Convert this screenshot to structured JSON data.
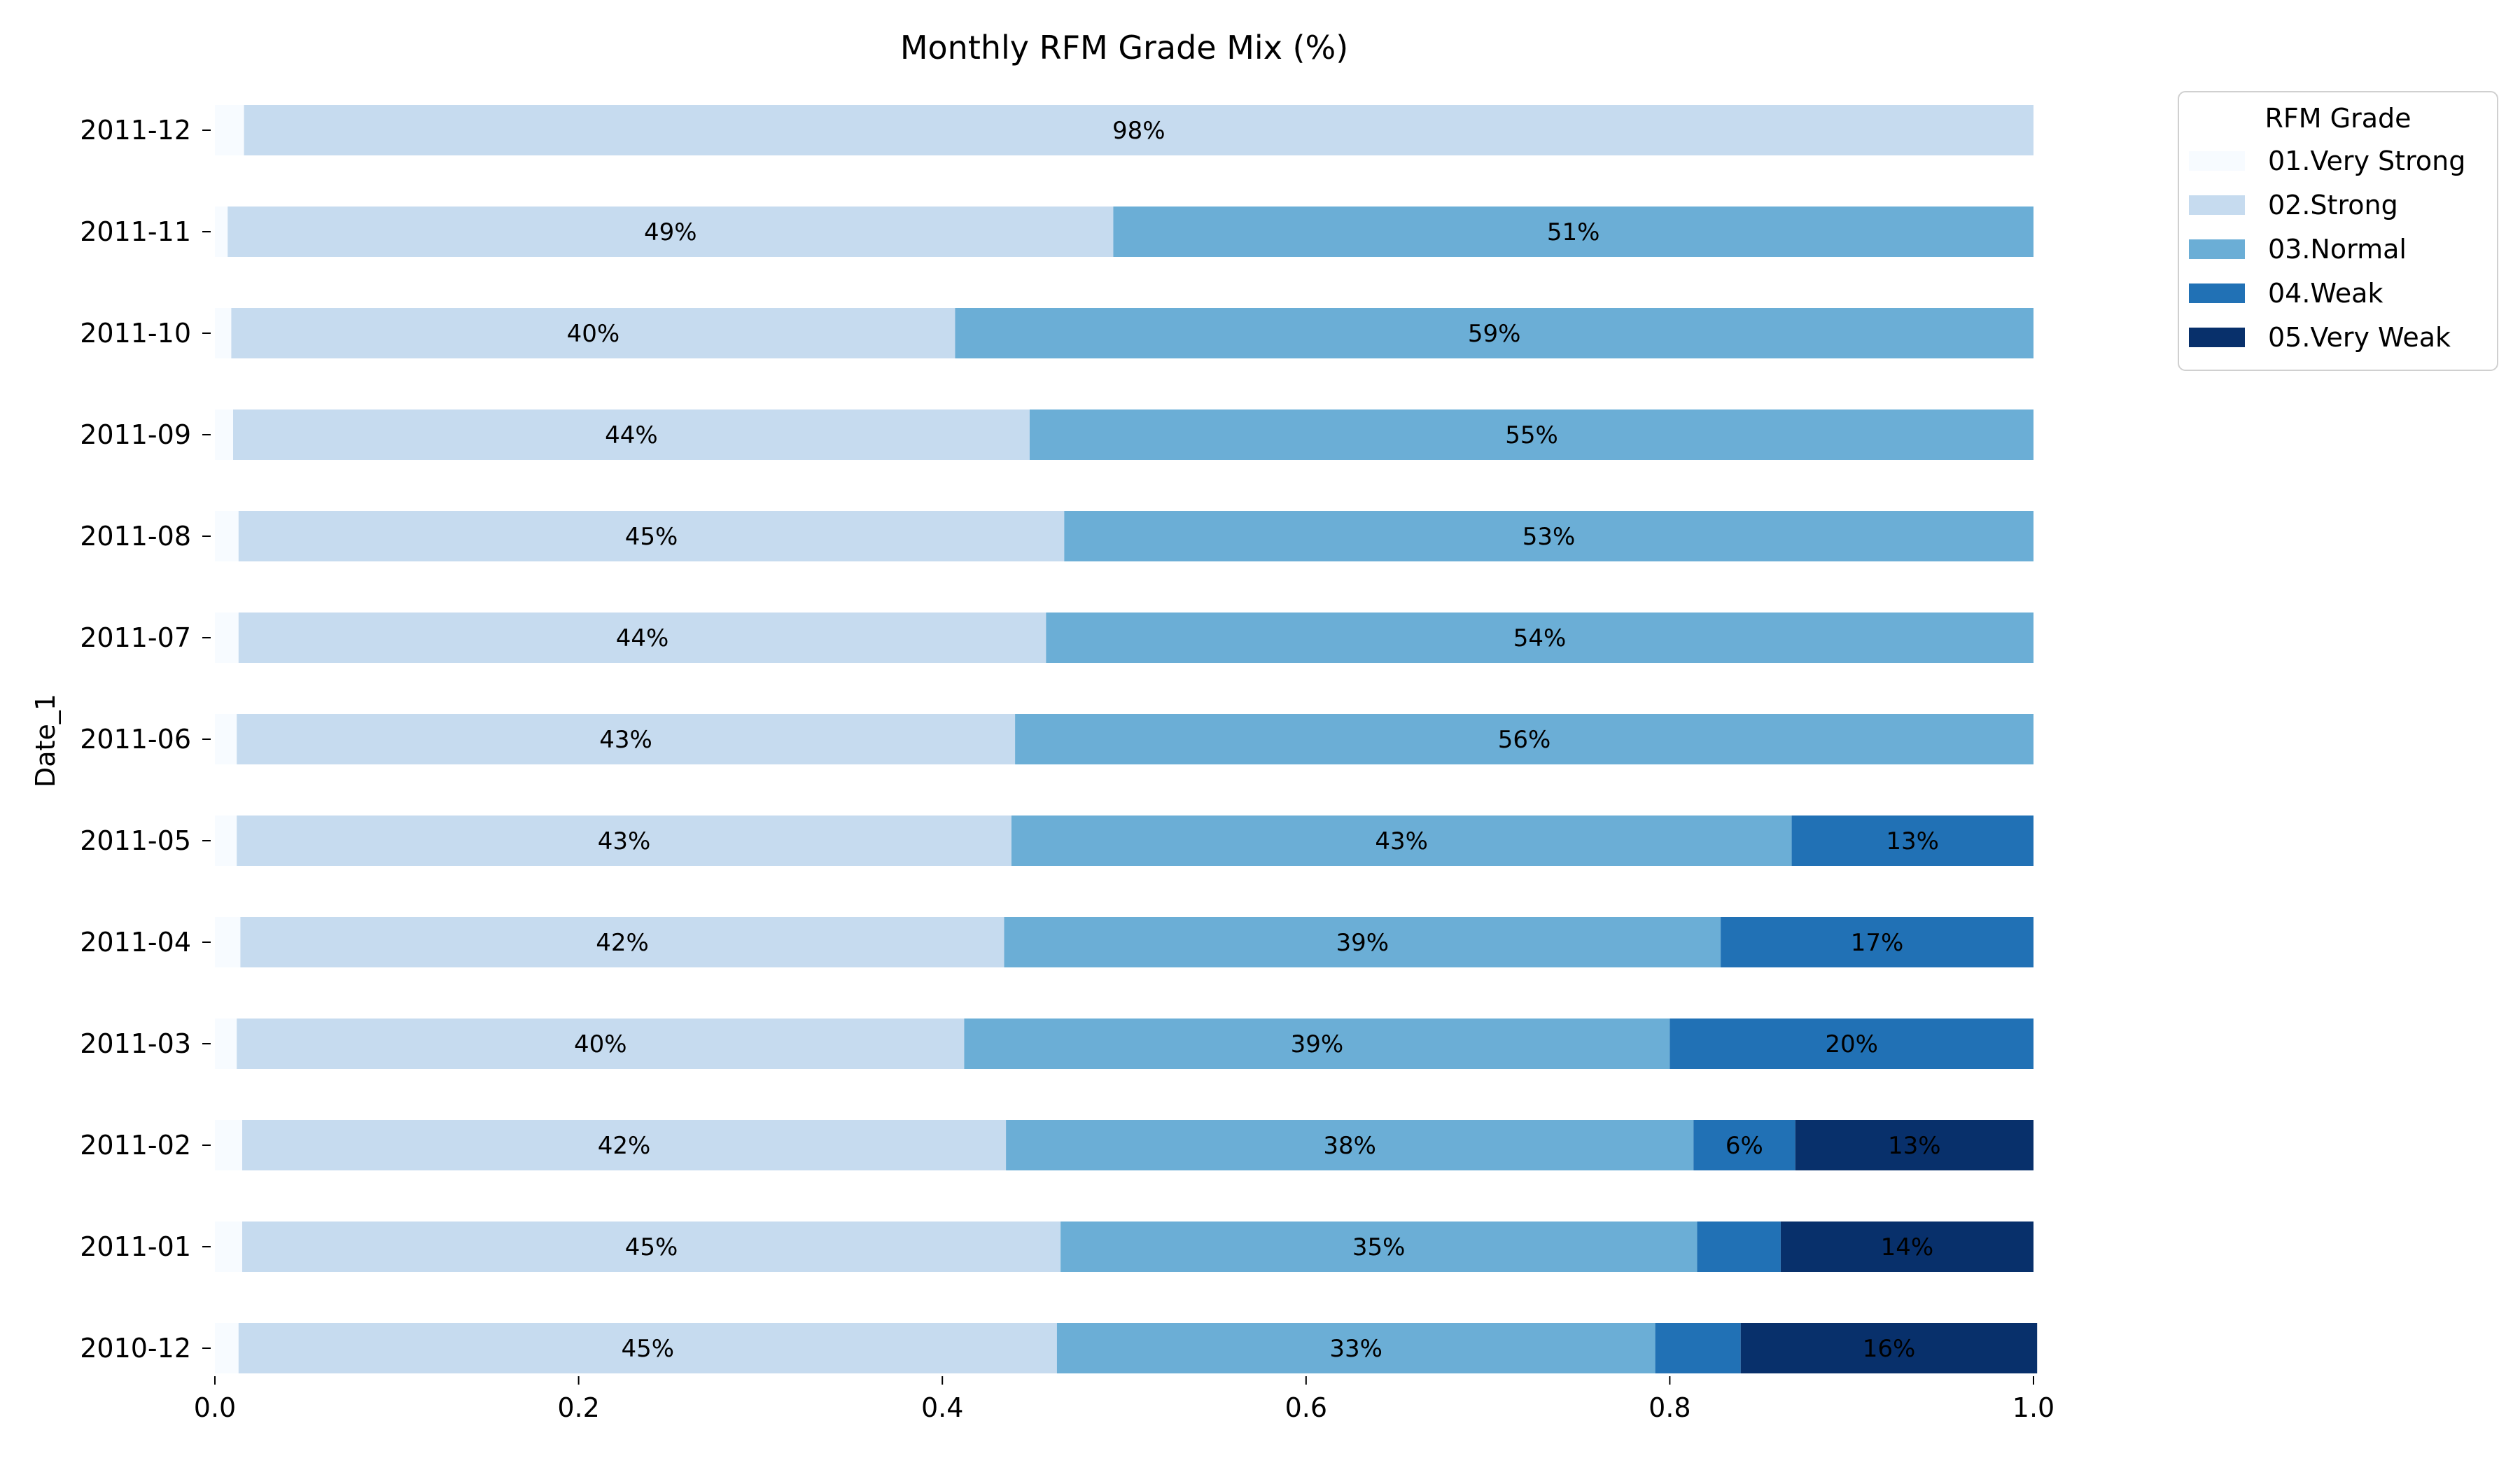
{
  "chart_data": {
    "type": "bar",
    "orientation": "horizontal",
    "stacked": true,
    "title": "Monthly RFM Grade Mix (%)",
    "xlabel": "",
    "ylabel": "Date_1",
    "xlim": [
      0,
      1
    ],
    "xticks": [
      "0.0",
      "0.2",
      "0.4",
      "0.6",
      "0.8",
      "1.0"
    ],
    "grid": false,
    "legend_position": "top-right-outside",
    "legend_title": "RFM Grade",
    "categories": [
      "2010-12",
      "2011-01",
      "2011-02",
      "2011-03",
      "2011-04",
      "2011-05",
      "2011-06",
      "2011-07",
      "2011-08",
      "2011-09",
      "2011-10",
      "2011-11",
      "2011-12"
    ],
    "series": [
      {
        "name": "01.Very Strong",
        "color": "#f7fbff",
        "values": [
          0.013,
          0.015,
          0.015,
          0.012,
          0.014,
          0.012,
          0.012,
          0.013,
          0.013,
          0.01,
          0.009,
          0.007,
          0.016
        ],
        "labels": [
          "",
          "",
          "",
          "",
          "",
          "",
          "",
          "",
          "",
          "",
          "",
          "",
          ""
        ]
      },
      {
        "name": "02.Strong",
        "color": "#c6dbef",
        "values": [
          0.45,
          0.45,
          0.42,
          0.4,
          0.42,
          0.426,
          0.428,
          0.444,
          0.454,
          0.438,
          0.398,
          0.487,
          0.984
        ],
        "labels": [
          "45%",
          "45%",
          "42%",
          "40%",
          "42%",
          "43%",
          "43%",
          "44%",
          "45%",
          "44%",
          "40%",
          "49%",
          "98%"
        ]
      },
      {
        "name": "03.Normal",
        "color": "#6baed6",
        "values": [
          0.329,
          0.35,
          0.378,
          0.388,
          0.394,
          0.429,
          0.56,
          0.543,
          0.533,
          0.552,
          0.593,
          0.506,
          0
        ],
        "labels": [
          "33%",
          "35%",
          "38%",
          "39%",
          "39%",
          "43%",
          "56%",
          "54%",
          "53%",
          "55%",
          "59%",
          "51%",
          ""
        ]
      },
      {
        "name": "04.Weak",
        "color": "#2171b5",
        "values": [
          0.047,
          0.046,
          0.056,
          0.2,
          0.172,
          0.133,
          0,
          0,
          0,
          0,
          0,
          0,
          0
        ],
        "labels": [
          "",
          "",
          "6%",
          "20%",
          "17%",
          "13%",
          "",
          "",
          "",
          "",
          "",
          "",
          ""
        ]
      },
      {
        "name": "05.Very Weak",
        "color": "#08306b",
        "values": [
          0.163,
          0.139,
          0.131,
          0,
          0,
          0,
          0,
          0,
          0,
          0,
          0,
          0,
          0
        ],
        "labels": [
          "16%",
          "14%",
          "13%",
          "",
          "",
          "",
          "",
          "",
          "",
          "",
          "",
          "",
          ""
        ]
      }
    ]
  }
}
